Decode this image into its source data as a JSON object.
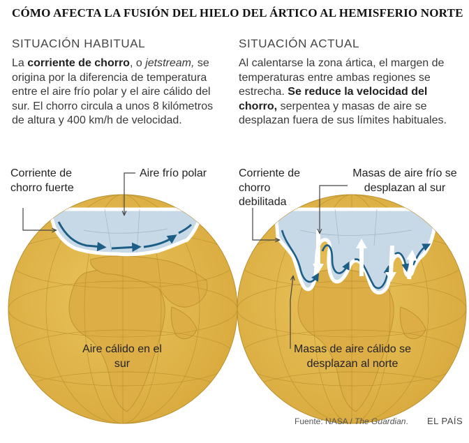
{
  "title": "CÓMO AFECTA LA FUSIÓN DEL HIELO DEL ÁRTICO AL HEMISFERIO NORTE",
  "left": {
    "heading": "SITUACIÓN HABITUAL",
    "para": {
      "p1": "La ",
      "bold1": "corriente de chorro",
      "p2": ", o ",
      "italic1": "jetstream,",
      "p3": " se origina por la diferencia de temperatura entre el aire frío polar y el aire cálido del sur. El chorro circula a unos 8 kilómetros de altura y 400 km/h de velocidad."
    },
    "label_jet": "Corriente de chorro fuerte",
    "label_cold": "Aire frío polar",
    "label_warm": "Aire cálido en el sur"
  },
  "right": {
    "heading": "SITUACIÓN ACTUAL",
    "para": {
      "p1": "Al calentarse la zona ártica, el margen de temperaturas entre ambas regiones se estrecha. ",
      "bold1": "Se reduce la velocidad del chorro,",
      "p2": " serpentea y masas de aire se desplazan fuera de sus límites habituales."
    },
    "label_jet": "Corriente de chorro debilitada",
    "label_cold": "Masas de aire frío se desplazan al sur",
    "label_warm": "Masas de aire cálido se desplazan al norte"
  },
  "footer": {
    "source_prefix": "Fuente: NASA / ",
    "source_italic": "The Guardian",
    "source_suffix": ".",
    "brand": "EL PAÍS"
  },
  "colors": {
    "globe": "#e5b94c",
    "globe_dark": "#c8982c",
    "ice": "#c7d8e6",
    "jet": "#1d5e86"
  }
}
